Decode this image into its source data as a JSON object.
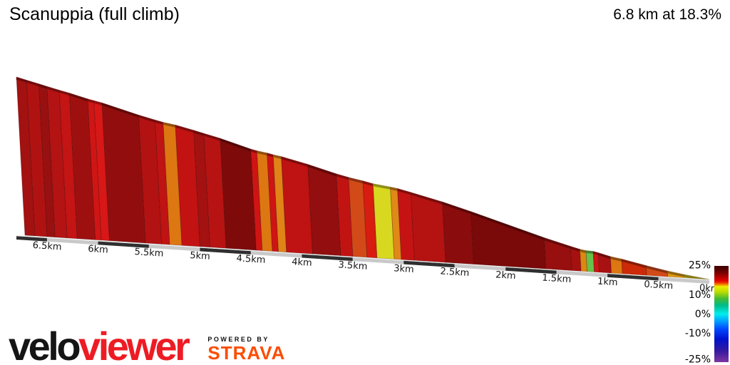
{
  "header": {
    "title": "Scanuppia (full climb)",
    "stats": "6.8 km at 18.3%"
  },
  "footer": {
    "brand_black": "velo",
    "brand_red": "viewer",
    "powered_by": "POWERED BY",
    "strava": "STRAVA"
  },
  "colors": {
    "background": "#ffffff",
    "brand_red": "#ed1c24",
    "strava_orange": "#fc4c02",
    "text": "#000000",
    "axis_strip_dark": "#2f2f2f",
    "axis_strip_light": "#c9c9c9"
  },
  "chart_data": {
    "type": "area",
    "title": "Scanuppia (full climb)",
    "summary": {
      "distance_km": 6.8,
      "avg_gradient_pct": 18.3
    },
    "y_encoding": "remaining climb wall height, colored by gradient",
    "x_axis": {
      "unit": "km to go",
      "tick_interval_km": 0.5,
      "ticks": [
        {
          "label": "6.5km",
          "km_to_go": 6.5
        },
        {
          "label": "6km",
          "km_to_go": 6.0
        },
        {
          "label": "5.5km",
          "km_to_go": 5.5
        },
        {
          "label": "5km",
          "km_to_go": 5.0
        },
        {
          "label": "4.5km",
          "km_to_go": 4.5
        },
        {
          "label": "4km",
          "km_to_go": 4.0
        },
        {
          "label": "3.5km",
          "km_to_go": 3.5
        },
        {
          "label": "3km",
          "km_to_go": 3.0
        },
        {
          "label": "2.5km",
          "km_to_go": 2.5
        },
        {
          "label": "2km",
          "km_to_go": 2.0
        },
        {
          "label": "1.5km",
          "km_to_go": 1.5
        },
        {
          "label": "1km",
          "km_to_go": 1.0
        },
        {
          "label": "0.5km",
          "km_to_go": 0.5
        },
        {
          "label": "0km",
          "km_to_go": 0.0
        }
      ]
    },
    "segments": [
      {
        "from_km": 0.0,
        "to_km": 0.1,
        "gradient_pct": 20.0,
        "color": "#a31111"
      },
      {
        "from_km": 0.1,
        "to_km": 0.22,
        "gradient_pct": 19.0,
        "color": "#b01212"
      },
      {
        "from_km": 0.22,
        "to_km": 0.3,
        "gradient_pct": 20.5,
        "color": "#991010"
      },
      {
        "from_km": 0.3,
        "to_km": 0.42,
        "gradient_pct": 19.0,
        "color": "#b31313"
      },
      {
        "from_km": 0.42,
        "to_km": 0.52,
        "gradient_pct": 18.0,
        "color": "#c41414"
      },
      {
        "from_km": 0.52,
        "to_km": 0.7,
        "gradient_pct": 20.5,
        "color": "#9e1010"
      },
      {
        "from_km": 0.7,
        "to_km": 0.76,
        "gradient_pct": 17.0,
        "color": "#d01515"
      },
      {
        "from_km": 0.76,
        "to_km": 0.84,
        "gradient_pct": 16.5,
        "color": "#d81717"
      },
      {
        "from_km": 0.84,
        "to_km": 1.2,
        "gradient_pct": 21.5,
        "color": "#920e0e"
      },
      {
        "from_km": 1.2,
        "to_km": 1.36,
        "gradient_pct": 19.0,
        "color": "#b31212"
      },
      {
        "from_km": 1.36,
        "to_km": 1.44,
        "gradient_pct": 18.0,
        "color": "#c01313"
      },
      {
        "from_km": 1.44,
        "to_km": 1.56,
        "gradient_pct": 12.5,
        "color": "#dd7711"
      },
      {
        "from_km": 1.56,
        "to_km": 1.74,
        "gradient_pct": 18.0,
        "color": "#c31212"
      },
      {
        "from_km": 1.74,
        "to_km": 1.84,
        "gradient_pct": 20.0,
        "color": "#a31111"
      },
      {
        "from_km": 1.84,
        "to_km": 2.0,
        "gradient_pct": 19.0,
        "color": "#b81313"
      },
      {
        "from_km": 2.0,
        "to_km": 2.3,
        "gradient_pct": 23.0,
        "color": "#7e0a0a"
      },
      {
        "from_km": 2.3,
        "to_km": 2.36,
        "gradient_pct": 17.0,
        "color": "#d01414"
      },
      {
        "from_km": 2.36,
        "to_km": 2.46,
        "gradient_pct": 12.5,
        "color": "#dd7711"
      },
      {
        "from_km": 2.46,
        "to_km": 2.52,
        "gradient_pct": 17.0,
        "color": "#cf1414"
      },
      {
        "from_km": 2.52,
        "to_km": 2.6,
        "gradient_pct": 13.0,
        "color": "#e08418"
      },
      {
        "from_km": 2.6,
        "to_km": 2.86,
        "gradient_pct": 18.5,
        "color": "#bf1212"
      },
      {
        "from_km": 2.86,
        "to_km": 3.14,
        "gradient_pct": 21.5,
        "color": "#930e0e"
      },
      {
        "from_km": 3.14,
        "to_km": 3.26,
        "gradient_pct": 18.0,
        "color": "#c21313"
      },
      {
        "from_km": 3.26,
        "to_km": 3.4,
        "gradient_pct": 14.5,
        "color": "#d24a18"
      },
      {
        "from_km": 3.4,
        "to_km": 3.5,
        "gradient_pct": 17.5,
        "color": "#d81c10"
      },
      {
        "from_km": 3.5,
        "to_km": 3.67,
        "gradient_pct": 10.0,
        "color": "#d8d820"
      },
      {
        "from_km": 3.67,
        "to_km": 3.74,
        "gradient_pct": 12.0,
        "color": "#e08818"
      },
      {
        "from_km": 3.74,
        "to_km": 3.87,
        "gradient_pct": 18.0,
        "color": "#c51313"
      },
      {
        "from_km": 3.87,
        "to_km": 4.18,
        "gradient_pct": 19.0,
        "color": "#b51212"
      },
      {
        "from_km": 4.18,
        "to_km": 4.46,
        "gradient_pct": 22.0,
        "color": "#8a0c0c"
      },
      {
        "from_km": 4.46,
        "to_km": 5.18,
        "gradient_pct": 23.5,
        "color": "#7a0909"
      },
      {
        "from_km": 5.18,
        "to_km": 5.44,
        "gradient_pct": 21.0,
        "color": "#970f0f"
      },
      {
        "from_km": 5.44,
        "to_km": 5.53,
        "gradient_pct": 20.0,
        "color": "#a51111"
      },
      {
        "from_km": 5.53,
        "to_km": 5.59,
        "gradient_pct": 12.5,
        "color": "#dd8811"
      },
      {
        "from_km": 5.59,
        "to_km": 5.66,
        "gradient_pct": 3.0,
        "color": "#66c24a"
      },
      {
        "from_km": 5.66,
        "to_km": 5.71,
        "gradient_pct": 17.0,
        "color": "#cc1414"
      },
      {
        "from_km": 5.71,
        "to_km": 5.83,
        "gradient_pct": 20.0,
        "color": "#a81111"
      },
      {
        "from_km": 5.83,
        "to_km": 5.94,
        "gradient_pct": 12.5,
        "color": "#dd7711"
      },
      {
        "from_km": 5.94,
        "to_km": 6.18,
        "gradient_pct": 16.5,
        "color": "#cc2a08"
      },
      {
        "from_km": 6.18,
        "to_km": 6.39,
        "gradient_pct": 15.0,
        "color": "#d24a18"
      },
      {
        "from_km": 6.39,
        "to_km": 6.55,
        "gradient_pct": 12.0,
        "color": "#dd9911"
      },
      {
        "from_km": 6.55,
        "to_km": 6.8,
        "gradient_pct": 10.5,
        "color": "#ccbb22"
      }
    ],
    "legend": {
      "position": "bottom-right",
      "range_pct": [
        -25,
        25
      ],
      "labels": [
        {
          "label": "25%",
          "value": 25
        },
        {
          "label": "10%",
          "value": 10
        },
        {
          "label": "0%",
          "value": 0
        },
        {
          "label": "-10%",
          "value": -10
        },
        {
          "label": "-25%",
          "value": -25
        }
      ],
      "gradient_stops": [
        {
          "offset": 0.0,
          "color": "#3a0000"
        },
        {
          "offset": 0.06,
          "color": "#6b0000"
        },
        {
          "offset": 0.11,
          "color": "#aa0000"
        },
        {
          "offset": 0.15,
          "color": "#dd0000"
        },
        {
          "offset": 0.17,
          "color": "#ee2200"
        },
        {
          "offset": 0.19,
          "color": "#ee7700"
        },
        {
          "offset": 0.215,
          "color": "#eeee00"
        },
        {
          "offset": 0.27,
          "color": "#bbdd00"
        },
        {
          "offset": 0.34,
          "color": "#44bb33"
        },
        {
          "offset": 0.41,
          "color": "#00bb88"
        },
        {
          "offset": 0.5,
          "color": "#00eeee"
        },
        {
          "offset": 0.58,
          "color": "#0099ff"
        },
        {
          "offset": 0.66,
          "color": "#0044ff"
        },
        {
          "offset": 0.76,
          "color": "#0011cc"
        },
        {
          "offset": 0.88,
          "color": "#3318a0"
        },
        {
          "offset": 1.0,
          "color": "#7d35a0"
        }
      ]
    }
  }
}
